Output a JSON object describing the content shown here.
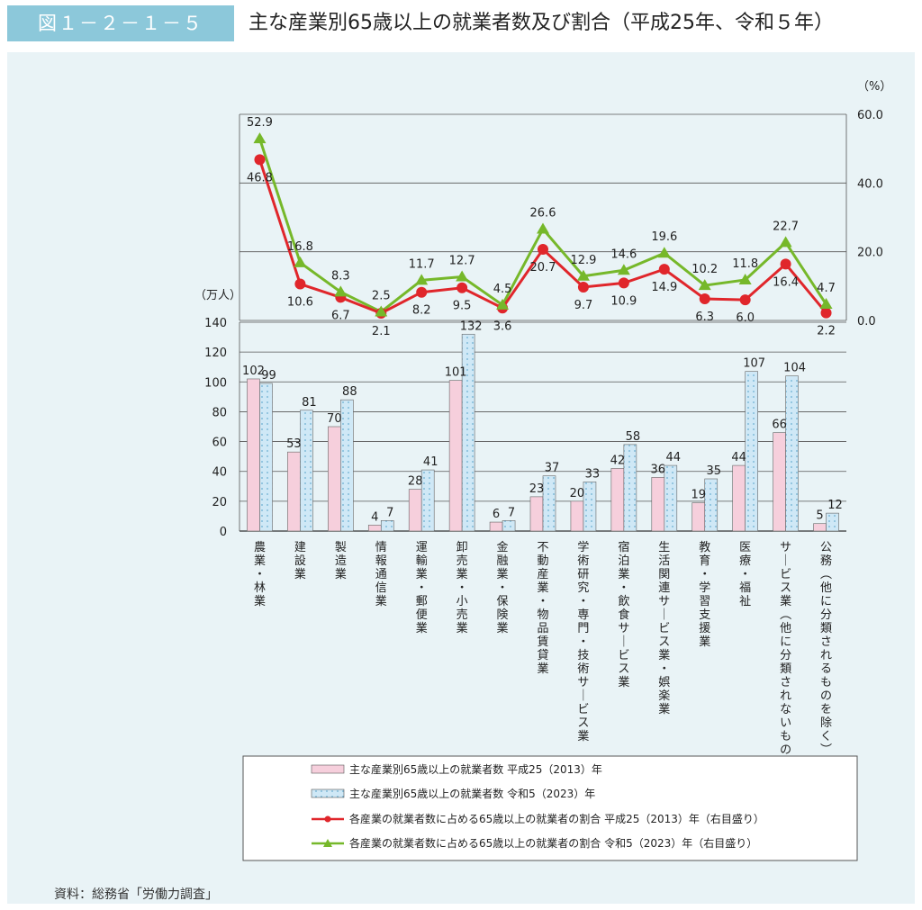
{
  "figure": {
    "number": "図１－２－１－５",
    "title": "主な産業別65歳以上の就業者数及び割合（平成25年、令和５年）",
    "source": "資料：総務省「労働力調査」",
    "colors": {
      "header_accent": "#8cc8da",
      "panel_bg": "#e9f3f6",
      "bar_2013": "#f6cfdc",
      "bar_2023": "#cfe8f6",
      "line_2013": "#e0262b",
      "line_2023": "#76b82a"
    }
  },
  "chart_data": {
    "type": "bar+line",
    "categories": [
      "農業・林業",
      "建設業",
      "製造業",
      "情報通信業",
      "運輸業・郵便業",
      "卸売業・小売業",
      "金融業・保険業",
      "不動産業・物品賃貸業",
      "学術研究・専門・技術サービス業",
      "宿泊業・飲食サービス業",
      "生活関連サービス業・娯楽業",
      "教育・学習支援業",
      "医療・福祉",
      "サービス業（他に分類されないもの）",
      "公務（他に分類されるものを除く）"
    ],
    "bar_series": [
      {
        "name": "主な産業別65歳以上の就業者数 平成25（2013）年",
        "values": [
          102,
          53,
          70,
          4,
          28,
          101,
          6,
          23,
          20,
          42,
          36,
          19,
          44,
          66,
          5
        ]
      },
      {
        "name": "主な産業別65歳以上の就業者数 令和5（2023）年",
        "values": [
          99,
          81,
          88,
          7,
          41,
          132,
          7,
          37,
          33,
          58,
          44,
          35,
          107,
          104,
          12
        ]
      }
    ],
    "line_series": [
      {
        "name": "各産業の就業者数に占める65歳以上の就業者の割合 平成25（2013）年（右目盛り）",
        "values": [
          46.8,
          10.6,
          6.7,
          2.1,
          8.2,
          9.5,
          3.6,
          20.7,
          9.7,
          10.9,
          14.9,
          6.3,
          6.0,
          16.4,
          2.2
        ]
      },
      {
        "name": "各産業の就業者数に占める65歳以上の就業者の割合 令和5（2023）年（右目盛り）",
        "values": [
          52.9,
          16.8,
          8.3,
          2.5,
          11.7,
          12.7,
          4.5,
          26.6,
          12.9,
          14.6,
          19.6,
          10.2,
          11.8,
          22.7,
          4.7
        ]
      }
    ],
    "left_axis": {
      "unit": "（万人）",
      "ticks": [
        0,
        20,
        40,
        60,
        80,
        100,
        120,
        140
      ],
      "ylim": [
        0,
        140
      ]
    },
    "right_axis": {
      "unit": "（%）",
      "ticks": [
        "0.0",
        "20.0",
        "40.0",
        "60.0"
      ],
      "ylim": [
        0,
        60
      ]
    },
    "grid": true,
    "legend_position": "bottom"
  }
}
